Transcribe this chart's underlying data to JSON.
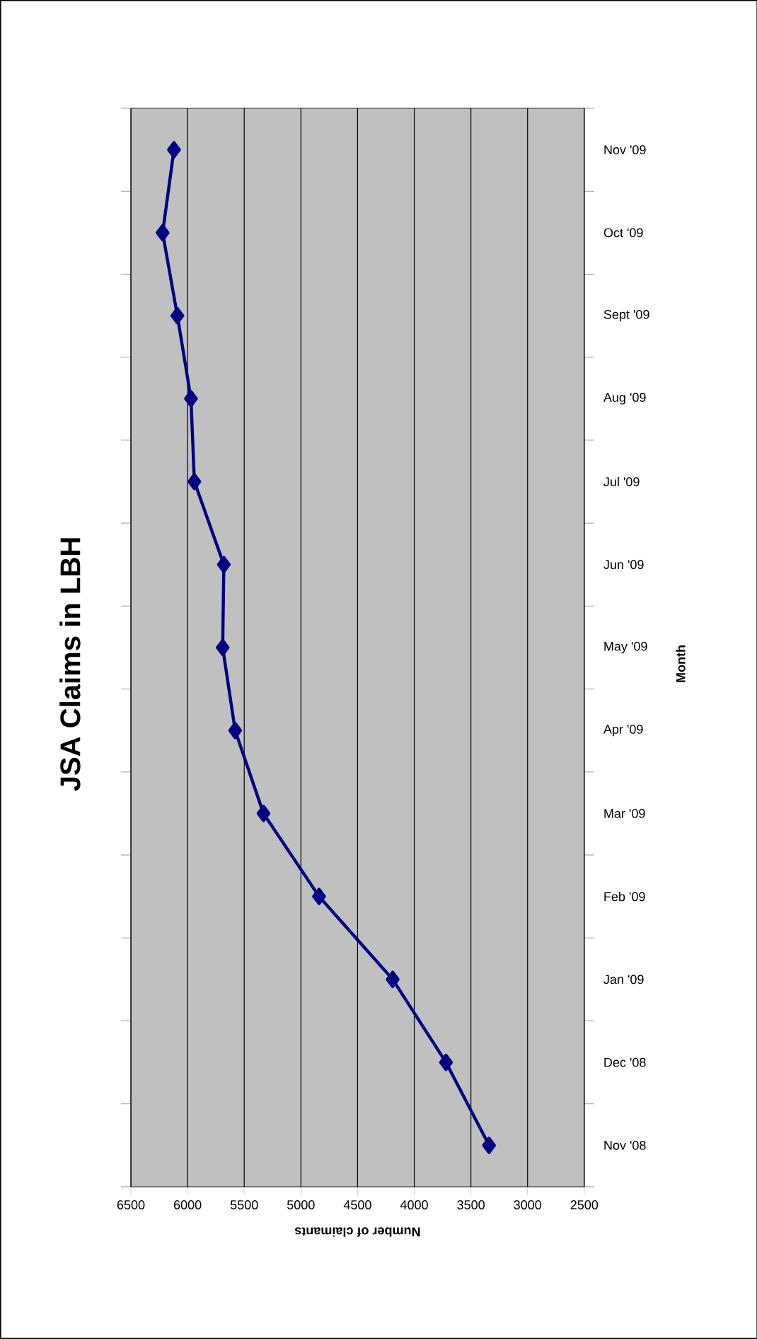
{
  "chart_data": {
    "type": "line",
    "orientation": "horizontal",
    "title": "JSA Claims in LBH",
    "ylabel": "Month",
    "xlabel": "Number of claimants",
    "categories": [
      "Nov '09",
      "Oct '09",
      "Sept '09",
      "Aug '09",
      "Jul '09",
      "Jun '09",
      "May '09",
      "Apr '09",
      "Mar '09",
      "Feb '09",
      "Jan '09",
      "Dec '08",
      "Nov '08"
    ],
    "series": [
      {
        "color": "#000080",
        "values": [
          6120,
          6220,
          6090,
          5970,
          5940,
          5680,
          5690,
          5580,
          5330,
          4840,
          4190,
          3720,
          3340
        ]
      }
    ],
    "xlim": [
      6500,
      2500
    ],
    "xticks": [
      6500,
      6000,
      5500,
      5000,
      4500,
      4000,
      3500,
      3000,
      2500
    ],
    "grid": "x",
    "marker": "diamond",
    "line_style": "solid"
  }
}
